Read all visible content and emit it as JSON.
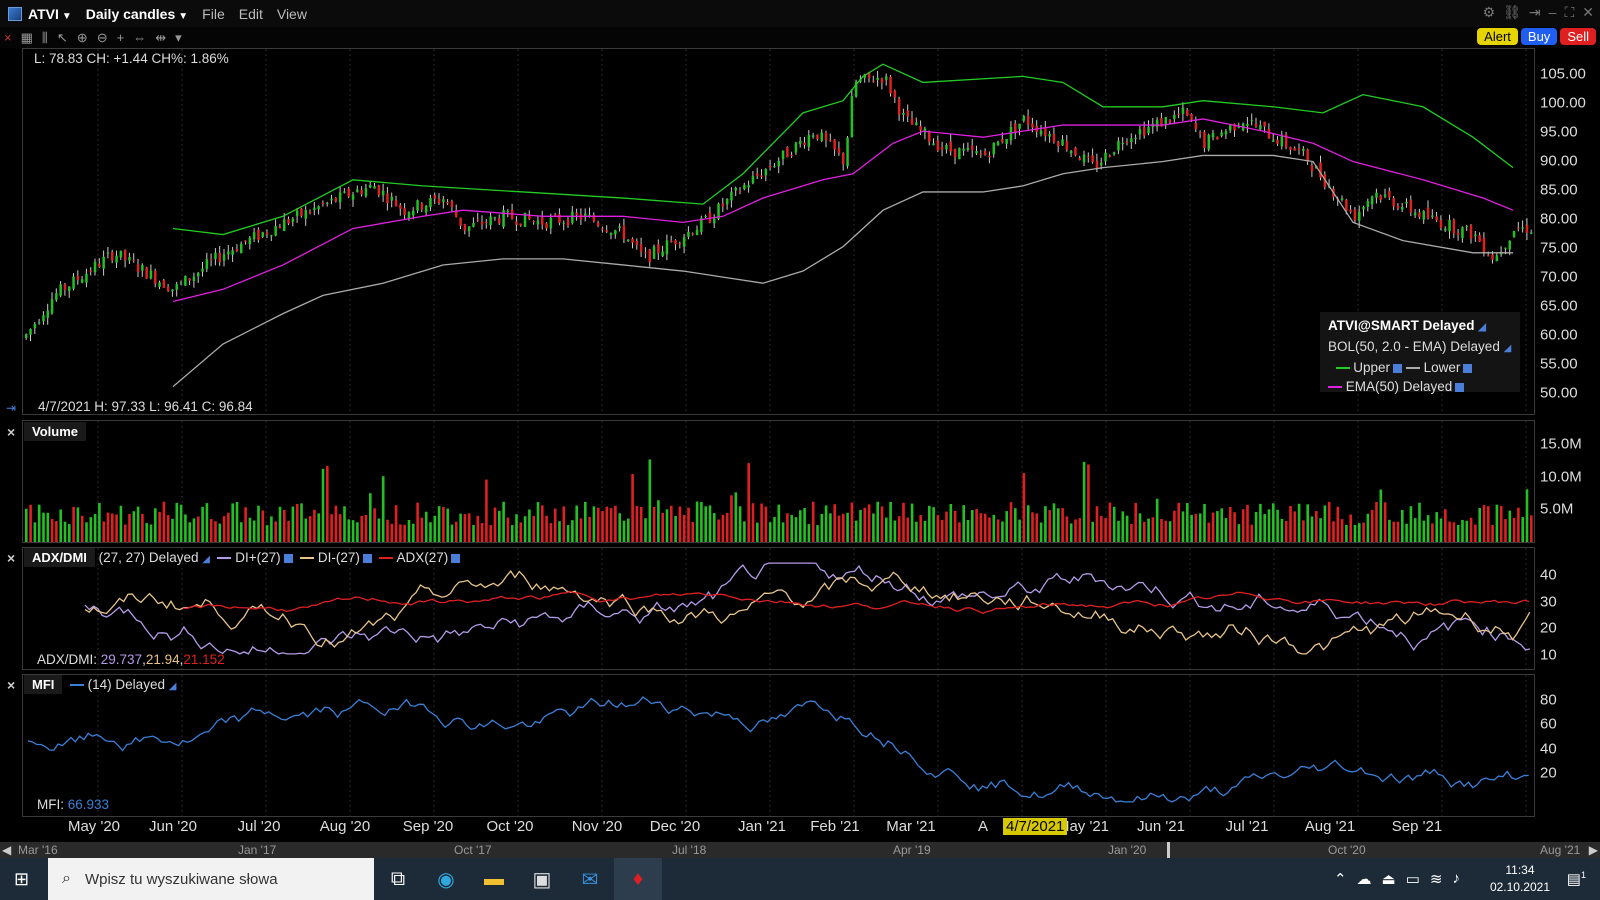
{
  "window": {
    "symbol": "ATVI",
    "period": "Daily candles",
    "menus": [
      "File",
      "Edit",
      "View"
    ]
  },
  "actions": {
    "alert": "Alert",
    "buy": "Buy",
    "sell": "Sell"
  },
  "price_pane": {
    "top_info": "L: 78.83 CH: +1.44 CH%: 1.86%",
    "bottom_info": "4/7/2021  H: 97.33  L: 96.41  C: 96.84",
    "axis": [
      "105.00",
      "100.00",
      "95.00",
      "90.00",
      "85.00",
      "80.00",
      "75.00",
      "70.00",
      "65.00",
      "60.00",
      "55.00",
      "50.00"
    ],
    "legend": {
      "title": "ATVI@SMART Delayed",
      "bol": "BOL(50, 2.0 - EMA) Delayed",
      "upper": "Upper",
      "lower": "Lower",
      "ema": "EMA(50) Delayed"
    },
    "colors": {
      "up": "#22c022",
      "down": "#e02020",
      "upper": "#22cc22",
      "lower": "#aaaaaa",
      "ema": "#e020e0"
    }
  },
  "volume_pane": {
    "label": "Volume",
    "axis": [
      "15.0M",
      "10.0M",
      "5.0M"
    ]
  },
  "adx_pane": {
    "label": "ADX/DMI",
    "params": "(27, 27) Delayed",
    "di_plus": "DI+(27)",
    "di_minus": "DI-(27)",
    "adx": "ADX(27)",
    "readout_label": "ADX/DMI:",
    "readout_di_plus": "29.737",
    "readout_di_minus": "21.94",
    "readout_adx": "21.152",
    "axis": [
      "40",
      "30",
      "20",
      "10"
    ],
    "colors": {
      "di_plus": "#b49be8",
      "di_minus": "#e8c48a",
      "adx": "#e02020"
    }
  },
  "mfi_pane": {
    "label": "MFI",
    "params": "(14) Delayed",
    "readout_label": "MFI:",
    "readout_value": "66.933",
    "axis": [
      "80",
      "60",
      "40",
      "20"
    ],
    "color": "#3a7fd8"
  },
  "xaxis": [
    "May '20",
    "Jun '20",
    "Jul '20",
    "Aug '20",
    "Sep '20",
    "Oct '20",
    "Nov '20",
    "Dec '20",
    "Jan '21",
    "Feb '21",
    "Mar '21",
    "A",
    "May '21",
    "Jun '21",
    "Jul '21",
    "Aug '21",
    "Sep '21"
  ],
  "cursor_date": "4/7/2021",
  "scroll_labels": [
    "Mar '16",
    "Jan '17",
    "Oct '17",
    "Jul '18",
    "Apr '19",
    "Jan '20",
    "Oct '20",
    "Aug '21"
  ],
  "taskbar": {
    "search_placeholder": "Wpisz tu wyszukiwane słowa",
    "time": "11:34",
    "date": "02.10.2021",
    "notifications": "1"
  },
  "chart_data": {
    "type": "candlestick",
    "price_anchor_points": [
      [
        0,
        60
      ],
      [
        30,
        67
      ],
      [
        90,
        74
      ],
      [
        150,
        68
      ],
      [
        200,
        74
      ],
      [
        260,
        79
      ],
      [
        330,
        84
      ],
      [
        350,
        85
      ],
      [
        380,
        81
      ],
      [
        420,
        83
      ],
      [
        440,
        78
      ],
      [
        480,
        80
      ],
      [
        520,
        79
      ],
      [
        560,
        80
      ],
      [
        600,
        77
      ],
      [
        620,
        73
      ],
      [
        650,
        76
      ],
      [
        680,
        79
      ],
      [
        720,
        85
      ],
      [
        760,
        90
      ],
      [
        790,
        94
      ],
      [
        820,
        89
      ],
      [
        830,
        102
      ],
      [
        860,
        103
      ],
      [
        880,
        96
      ],
      [
        920,
        91
      ],
      [
        960,
        90
      ],
      [
        1000,
        96
      ],
      [
        1040,
        92
      ],
      [
        1070,
        88
      ],
      [
        1100,
        93
      ],
      [
        1160,
        97
      ],
      [
        1180,
        92
      ],
      [
        1220,
        96
      ],
      [
        1280,
        90
      ],
      [
        1300,
        86
      ],
      [
        1330,
        80
      ],
      [
        1350,
        84
      ],
      [
        1400,
        80
      ],
      [
        1450,
        77
      ],
      [
        1470,
        73
      ],
      [
        1490,
        78
      ]
    ],
    "upper_band_points": [
      [
        150,
        78
      ],
      [
        200,
        77
      ],
      [
        260,
        80
      ],
      [
        330,
        86
      ],
      [
        400,
        85
      ],
      [
        500,
        84
      ],
      [
        600,
        83
      ],
      [
        680,
        82
      ],
      [
        720,
        87
      ],
      [
        780,
        97
      ],
      [
        820,
        99
      ],
      [
        840,
        103
      ],
      [
        860,
        105
      ],
      [
        900,
        102
      ],
      [
        1000,
        103
      ],
      [
        1040,
        102
      ],
      [
        1080,
        98
      ],
      [
        1140,
        98
      ],
      [
        1180,
        99
      ],
      [
        1250,
        98
      ],
      [
        1300,
        97
      ],
      [
        1340,
        100
      ],
      [
        1400,
        98
      ],
      [
        1450,
        93
      ],
      [
        1490,
        88
      ]
    ],
    "lower_band_points": [
      [
        150,
        52
      ],
      [
        200,
        59
      ],
      [
        260,
        64
      ],
      [
        300,
        67
      ],
      [
        360,
        69
      ],
      [
        420,
        72
      ],
      [
        480,
        73
      ],
      [
        540,
        73
      ],
      [
        600,
        72
      ],
      [
        660,
        71
      ],
      [
        700,
        70
      ],
      [
        740,
        69
      ],
      [
        780,
        71
      ],
      [
        820,
        75
      ],
      [
        860,
        81
      ],
      [
        900,
        84
      ],
      [
        960,
        84
      ],
      [
        1000,
        85
      ],
      [
        1040,
        87
      ],
      [
        1080,
        88
      ],
      [
        1140,
        89
      ],
      [
        1180,
        90
      ],
      [
        1250,
        90
      ],
      [
        1290,
        89
      ],
      [
        1330,
        79
      ],
      [
        1380,
        76
      ],
      [
        1450,
        74
      ],
      [
        1490,
        74
      ]
    ],
    "ema_points": [
      [
        150,
        66
      ],
      [
        200,
        68
      ],
      [
        260,
        72
      ],
      [
        330,
        78
      ],
      [
        400,
        80
      ],
      [
        440,
        81
      ],
      [
        520,
        80
      ],
      [
        600,
        80
      ],
      [
        660,
        79
      ],
      [
        700,
        80
      ],
      [
        740,
        83
      ],
      [
        800,
        86
      ],
      [
        830,
        87
      ],
      [
        870,
        92
      ],
      [
        900,
        94
      ],
      [
        960,
        93
      ],
      [
        1000,
        94
      ],
      [
        1040,
        95
      ],
      [
        1080,
        95
      ],
      [
        1140,
        95
      ],
      [
        1180,
        96
      ],
      [
        1240,
        94
      ],
      [
        1290,
        92
      ],
      [
        1330,
        89
      ],
      [
        1400,
        86
      ],
      [
        1460,
        83
      ],
      [
        1490,
        81
      ]
    ],
    "price_ylim": [
      47.5,
      107.5
    ],
    "volume_ylim": [
      0,
      18
    ],
    "adx_ylim": [
      5,
      45
    ],
    "mfi_ylim": [
      10,
      90
    ]
  }
}
